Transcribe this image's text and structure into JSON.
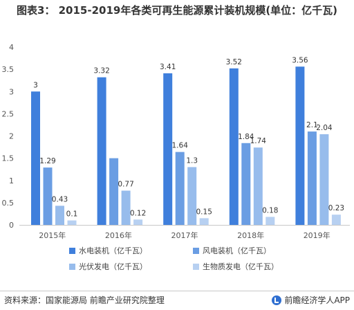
{
  "title": "图表3：  2015-2019年各类可再生能源累计装机规模(单位：亿千瓦)",
  "source": "资料来源：国家能源局 前瞻产业研究院整理",
  "brand": "前瞻经济学人APP",
  "chart_data": {
    "type": "bar",
    "categories": [
      "2015年",
      "2016年",
      "2017年",
      "2018年",
      "2019年"
    ],
    "ylim": [
      0,
      4
    ],
    "yticks": [
      "0",
      "0.5",
      "1",
      "1.5",
      "2",
      "2.5",
      "3",
      "3.5",
      "4"
    ],
    "grid": false,
    "legend_position": "bottom",
    "series": [
      {
        "name": "水电装机（亿千瓦）",
        "color": "#3f7fdc",
        "values": [
          3,
          3.32,
          3.41,
          3.52,
          3.56
        ],
        "labels": [
          "3",
          "3.32",
          "3.41",
          "3.52",
          "3.56"
        ]
      },
      {
        "name": "风电装机（亿千瓦）",
        "color": "#6a9de3",
        "values": [
          1.29,
          1.5,
          1.64,
          1.84,
          2.1
        ],
        "labels": [
          "1.29",
          "",
          "1.64",
          "1.84",
          "2.1"
        ]
      },
      {
        "name": "光伏发电（亿千瓦）",
        "color": "#97bcec",
        "values": [
          0.43,
          0.77,
          1.3,
          1.74,
          2.04
        ],
        "labels": [
          "0.43",
          "0.77",
          "1.3",
          "1.74",
          "2.04"
        ]
      },
      {
        "name": "生物质发电（亿千瓦）",
        "color": "#b7d0f1",
        "values": [
          0.1,
          0.12,
          0.15,
          0.18,
          0.23
        ],
        "labels": [
          "0.1",
          "0.12",
          "0.15",
          "0.18",
          "0.23"
        ]
      }
    ]
  }
}
